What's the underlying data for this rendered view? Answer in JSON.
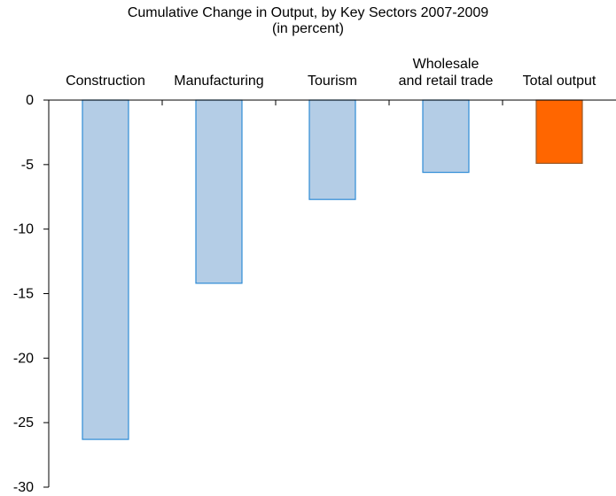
{
  "chart_data": {
    "type": "bar",
    "title": "Cumulative Change  in Output, by Key Sectors 2007-2009",
    "subtitle": "(in percent)",
    "categories": [
      [
        "Construction"
      ],
      [
        "Manufacturing"
      ],
      [
        "Tourism"
      ],
      [
        "Wholesale",
        "and retail trade"
      ],
      [
        "Total output"
      ]
    ],
    "values": [
      -26.3,
      -14.2,
      -7.7,
      -5.6,
      -4.9
    ],
    "colors": [
      "#b4cde6",
      "#b4cde6",
      "#b4cde6",
      "#b4cde6",
      "#ff6600"
    ],
    "edge_colors": [
      "#2e8bd6",
      "#2e8bd6",
      "#2e8bd6",
      "#2e8bd6",
      "#9a5a2a"
    ],
    "ylim": [
      -30,
      0
    ],
    "yticks": [
      0,
      -5,
      -10,
      -15,
      -20,
      -25,
      -30
    ],
    "xlabel": "",
    "ylabel": "",
    "grid": false,
    "category_label_position": "top"
  }
}
